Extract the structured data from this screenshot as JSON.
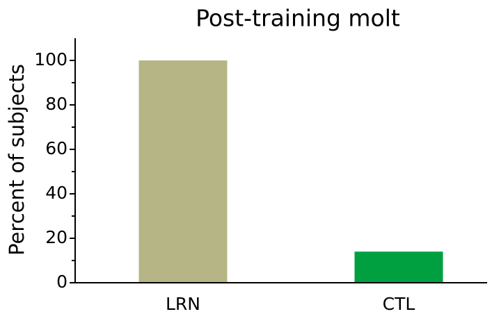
{
  "chart_data": {
    "type": "bar",
    "title": "Post-training molt",
    "ylabel": "Percent of subjects",
    "categories": [
      "LRN",
      "CTL"
    ],
    "values": [
      100,
      14
    ],
    "colors": [
      "#b5b585",
      "#00a040"
    ],
    "ylim": [
      0,
      110
    ],
    "yticks": [
      0,
      20,
      40,
      60,
      80,
      100
    ],
    "yminorticks": [
      10,
      30,
      50,
      70,
      90
    ]
  }
}
